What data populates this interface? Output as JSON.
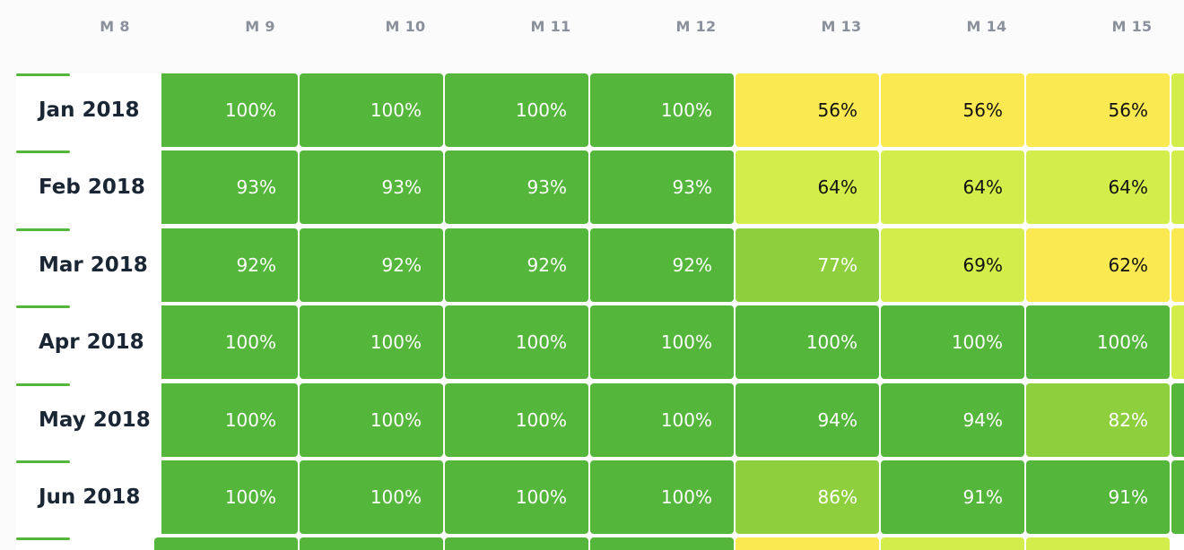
{
  "chart_data": {
    "type": "heatmap",
    "columns": [
      "M 8",
      "M 9",
      "M 10",
      "M 11",
      "M 12",
      "M 13",
      "M 14",
      "M 15"
    ],
    "rows": [
      {
        "label": "Jan 2018",
        "values": [
          "100%",
          "100%",
          "100%",
          "100%",
          "56%",
          "56%",
          "56%"
        ]
      },
      {
        "label": "Feb 2018",
        "values": [
          "93%",
          "93%",
          "93%",
          "93%",
          "64%",
          "64%",
          "64%"
        ]
      },
      {
        "label": "Mar 2018",
        "values": [
          "92%",
          "92%",
          "92%",
          "92%",
          "77%",
          "69%",
          "62%"
        ]
      },
      {
        "label": "Apr 2018",
        "values": [
          "100%",
          "100%",
          "100%",
          "100%",
          "100%",
          "100%",
          "100%"
        ]
      },
      {
        "label": "May 2018",
        "values": [
          "100%",
          "100%",
          "100%",
          "100%",
          "94%",
          "94%",
          "82%"
        ]
      },
      {
        "label": "Jun 2018",
        "values": [
          "100%",
          "100%",
          "100%",
          "100%",
          "86%",
          "91%",
          "91%"
        ]
      }
    ],
    "partial_right_colors": [
      "#d3ee4a",
      "#d3ee4a",
      "#fbe952",
      "#d3ee4a",
      "#54b63a",
      "#54b63a"
    ],
    "partial_bottom_row_colors": [
      "#54b63a",
      "#54b63a",
      "#54b63a",
      "#54b63a",
      "#fbe952",
      "#d3ee4a",
      "#d3ee4a"
    ],
    "color_scale": {
      "high": "#54b63a",
      "upper_mid": "#8ecf3e",
      "mid": "#d3ee4a",
      "low": "#fbe952"
    },
    "text_colors": {
      "on_dark": "#ffffff",
      "on_light": "#111111"
    }
  }
}
